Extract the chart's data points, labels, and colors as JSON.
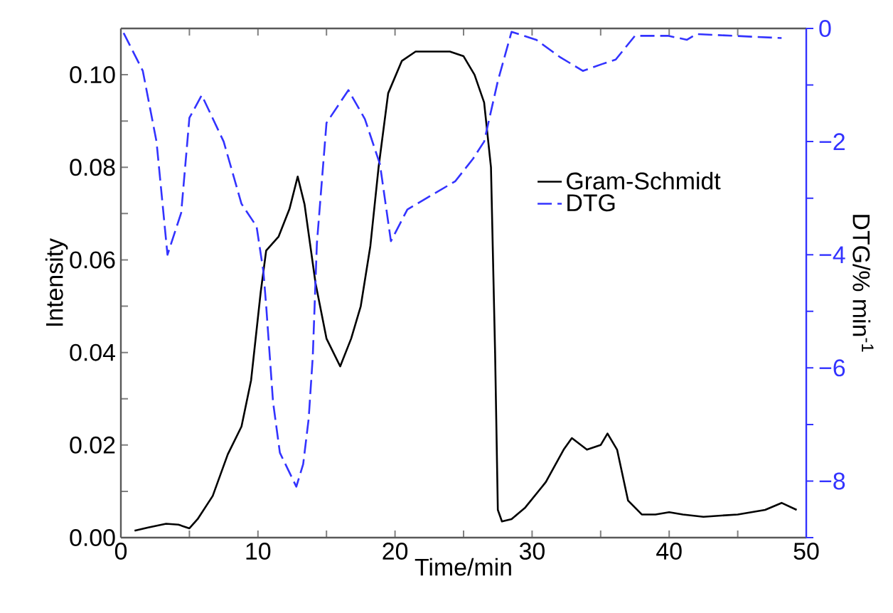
{
  "chart_data": {
    "type": "line",
    "xlabel": "Time/min",
    "ylabel": "Intensity",
    "y2label": "DTG/% min$^{-1}$",
    "xlim": [
      0,
      50
    ],
    "xticks": [
      0,
      {
        "value": 5,
        "label": null
      },
      10,
      {
        "value": 15,
        "label": null
      },
      20,
      {
        "value": 25,
        "label": null
      },
      30,
      {
        "value": 35,
        "label": null
      },
      40,
      {
        "value": 45,
        "label": null
      },
      50
    ],
    "ylim": [
      0,
      0.11
    ],
    "yticks": [
      {
        "value": 0,
        "label": "0.00"
      },
      {
        "value": 0.01,
        "label": null
      },
      {
        "value": 0.02,
        "label": "0.02"
      },
      {
        "value": 0.03,
        "label": null
      },
      {
        "value": 0.04,
        "label": "0.04"
      },
      {
        "value": 0.05,
        "label": null
      },
      {
        "value": 0.06,
        "label": "0.06"
      },
      {
        "value": 0.07,
        "label": null
      },
      {
        "value": 0.08,
        "label": "0.08"
      },
      {
        "value": 0.09,
        "label": null
      },
      {
        "value": 0.1,
        "label": "0.10"
      }
    ],
    "y2lim": [
      -9,
      0
    ],
    "y2ticks": [
      {
        "value": -9,
        "label": null
      },
      {
        "value": -8,
        "label": "−8"
      },
      {
        "value": -7,
        "label": null
      },
      {
        "value": -6,
        "label": "−6"
      },
      {
        "value": -5,
        "label": null
      },
      {
        "value": -4,
        "label": "−4"
      },
      {
        "value": -3,
        "label": null
      },
      {
        "value": -2,
        "label": "−2"
      },
      {
        "value": -1,
        "label": null
      },
      0
    ],
    "legend": "right",
    "marker": "none",
    "series": [
      {
        "name": "Gram-Schmidt",
        "color": "#000000",
        "line_style": "solid",
        "x": [
          1.0,
          2.0,
          3.3,
          4.2,
          5.0,
          5.6,
          6.7,
          7.8,
          8.8,
          9.5,
          10.2,
          10.6,
          11.5,
          12.3,
          12.9,
          13.4,
          14.2,
          15.0,
          16.0,
          16.8,
          17.5,
          18.2,
          18.8,
          19.5,
          20.5,
          21.5,
          23.0,
          24.0,
          25.0,
          25.8,
          26.5,
          27.0,
          27.3,
          27.5,
          27.8,
          28.5,
          29.5,
          31.0,
          32.3,
          32.9,
          34.0,
          35.0,
          35.5,
          36.2,
          37.0,
          38.0,
          39.0,
          40.0,
          41.0,
          42.5,
          45.0,
          47.0,
          48.2,
          49.3
        ],
        "values": [
          0.0015,
          0.0022,
          0.003,
          0.0028,
          0.002,
          0.004,
          0.009,
          0.018,
          0.024,
          0.034,
          0.053,
          0.062,
          0.065,
          0.071,
          0.078,
          0.072,
          0.055,
          0.043,
          0.037,
          0.043,
          0.05,
          0.063,
          0.08,
          0.096,
          0.103,
          0.105,
          0.105,
          0.105,
          0.104,
          0.1,
          0.094,
          0.08,
          0.04,
          0.006,
          0.0035,
          0.004,
          0.0065,
          0.012,
          0.019,
          0.0215,
          0.019,
          0.02,
          0.0225,
          0.019,
          0.008,
          0.005,
          0.005,
          0.0055,
          0.005,
          0.0045,
          0.005,
          0.006,
          0.0075,
          0.006
        ]
      },
      {
        "name": "DTG",
        "color": "#3333ff",
        "line_style": "dashed",
        "axis": "y2",
        "x": [
          0.2,
          1.6,
          2.6,
          3.4,
          4.4,
          5.0,
          5.9,
          7.5,
          8.8,
          9.9,
          10.4,
          10.6,
          11.1,
          11.6,
          12.8,
          13.3,
          13.7,
          14.0,
          14.3,
          15.0,
          16.6,
          17.8,
          18.9,
          19.7,
          20.9,
          22.3,
          24.4,
          25.7,
          26.5,
          27.5,
          28.5,
          30.3,
          32.0,
          33.7,
          35.1,
          36.1,
          37.5,
          39.9,
          41.3,
          42.0,
          48.2
        ],
        "values": [
          -0.08,
          -0.75,
          -2.0,
          -4.0,
          -3.26,
          -1.58,
          -1.18,
          -2.0,
          -3.1,
          -3.5,
          -4.3,
          -4.9,
          -6.6,
          -7.5,
          -8.1,
          -7.7,
          -6.9,
          -5.8,
          -3.8,
          -1.67,
          -1.09,
          -1.6,
          -2.4,
          -3.76,
          -3.2,
          -3.0,
          -2.7,
          -2.3,
          -2.0,
          -0.93,
          -0.06,
          -0.2,
          -0.5,
          -0.75,
          -0.63,
          -0.55,
          -0.13,
          -0.13,
          -0.2,
          -0.1,
          -0.17
        ]
      }
    ]
  }
}
